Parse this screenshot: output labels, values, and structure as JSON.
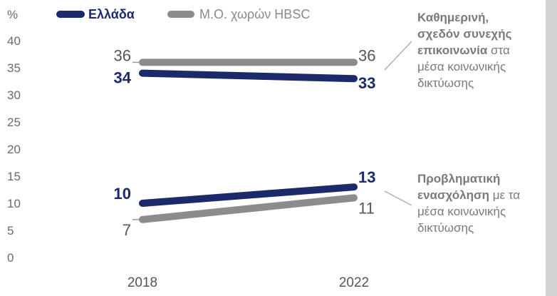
{
  "chart_data": {
    "type": "line",
    "ylabel": "%",
    "categories": [
      "2018",
      "2022"
    ],
    "ylim": [
      0,
      40
    ],
    "yticks": [
      0,
      5,
      10,
      15,
      20,
      25,
      30,
      35,
      40
    ],
    "grid": false,
    "legend_position": "top-left",
    "colors": {
      "greece": "#1b2a6b",
      "average": "#8c8c8c"
    },
    "legend": [
      {
        "key": "greece",
        "name": "Ελλάδα"
      },
      {
        "key": "average",
        "name": "Μ.Ο. χωρών HBSC"
      }
    ],
    "groups": [
      {
        "annotation_bold": "Καθημερινή, σχεδόν συνεχής επικοινωνία",
        "annotation_rest": "στα μέσα κοινωνικής δικτύωσης",
        "annotation_lines": [
          {
            "bold": "Καθημερινή,",
            "rest": ""
          },
          {
            "bold": "σχεδόν συνεχής",
            "rest": ""
          },
          {
            "bold": "επικοινωνία",
            "rest": " στα"
          },
          {
            "bold": "",
            "rest": "μέσα κοινωνικής"
          },
          {
            "bold": "",
            "rest": "δικτύωσης"
          }
        ],
        "series": [
          {
            "key": "greece",
            "values": [
              34,
              33
            ]
          },
          {
            "key": "average",
            "values": [
              36,
              36
            ]
          }
        ]
      },
      {
        "annotation_bold": "Προβληματική ενασχόληση",
        "annotation_rest": "με τα μέσα κοινωνικής δικτύωσης",
        "annotation_lines": [
          {
            "bold": "Προβληματική",
            "rest": ""
          },
          {
            "bold": "ενασχόληση",
            "rest": " με τα"
          },
          {
            "bold": "",
            "rest": "μέσα κοινωνικής"
          },
          {
            "bold": "",
            "rest": "δικτύωσης"
          }
        ],
        "series": [
          {
            "key": "greece",
            "values": [
              10,
              13
            ]
          },
          {
            "key": "average",
            "values": [
              7,
              11
            ]
          }
        ]
      }
    ]
  }
}
